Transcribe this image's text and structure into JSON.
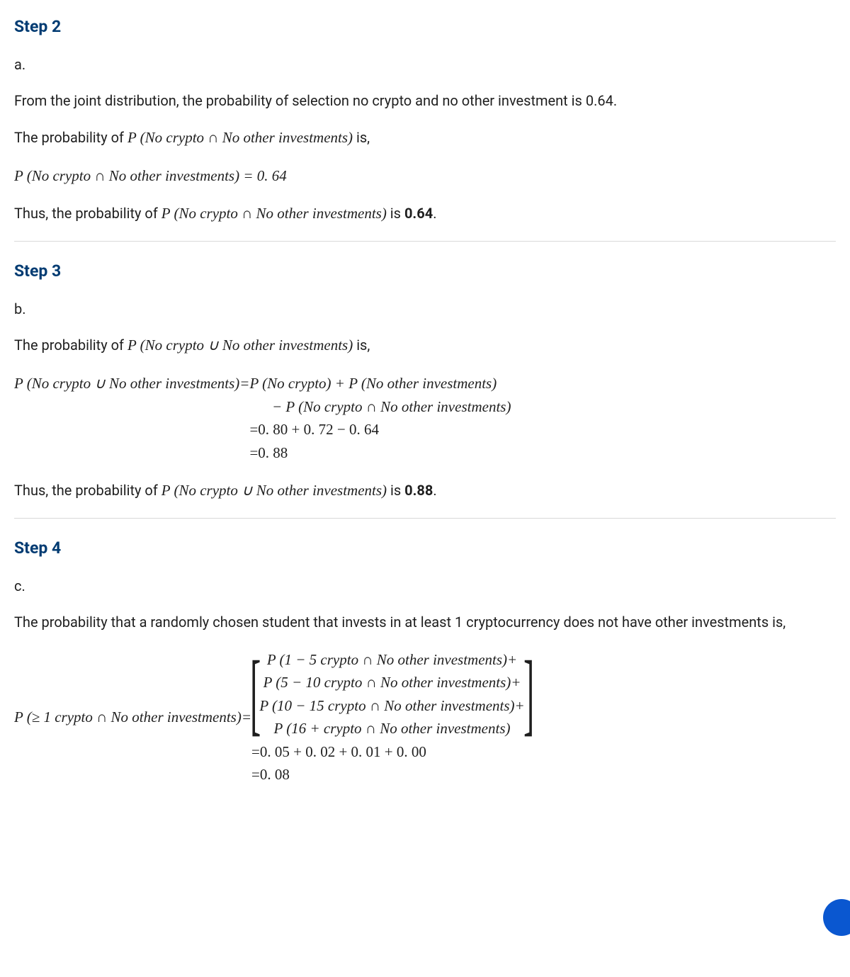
{
  "colors": {
    "heading": "#003b72",
    "text": "#1f1f1f",
    "divider": "#d9d9d9",
    "fab": "#0a57d0",
    "bg": "#ffffff"
  },
  "step2": {
    "title": "Step 2",
    "part": "a.",
    "intro": "From the joint distribution, the probability of selection no crypto and no other investment is 0.64.",
    "prob_is_prefix": "The probability of ",
    "prob_expr": "P (No  crypto ∩ No   other   investments)",
    "prob_is_suffix": " is,",
    "equation": "P (No  crypto ∩ No   other   investments) = 0. 64",
    "thus_prefix": "Thus, the probability of ",
    "thus_suffix": " is ",
    "result": "0.64",
    "period": "."
  },
  "step3": {
    "title": "Step 3",
    "part": "b.",
    "prob_is_prefix": "The probability of ",
    "prob_expr": "P (No  crypto ∪ No   other   investments)",
    "prob_is_suffix": " is,",
    "lhs": "P (No  crypto ∪ No   other   investments)=",
    "rhs1": "P (No   crypto) + P (No   other   investments)",
    "rhs2": "      − P (No  crypto ∩ No   other   investments)",
    "rhs3": "=0. 80 + 0. 72 − 0. 64",
    "rhs4": "=0. 88",
    "thus_prefix": "Thus, the probability of ",
    "thus_suffix": " is ",
    "result": "0.88",
    "period": "."
  },
  "step4": {
    "title": "Step 4",
    "part": "c.",
    "intro": "The probability that a randomly chosen student that invests in at least 1 cryptocurrency does not have other investments is,",
    "lhs": "P (≥ 1 crypto ∩ No   other   investments)=",
    "br1": "P (1 − 5 crypto ∩ No   other   investments)+",
    "br2": "P (5 − 10 crypto ∩ No   other   investments)+",
    "br3": "P (10 − 15 crypto ∩ No   other   investments)+",
    "br4": "P (16 +  crypto ∩ No   other   investments)",
    "calc1": "=0. 05 + 0. 02 + 0. 01 + 0. 00",
    "calc2": "=0. 08"
  }
}
